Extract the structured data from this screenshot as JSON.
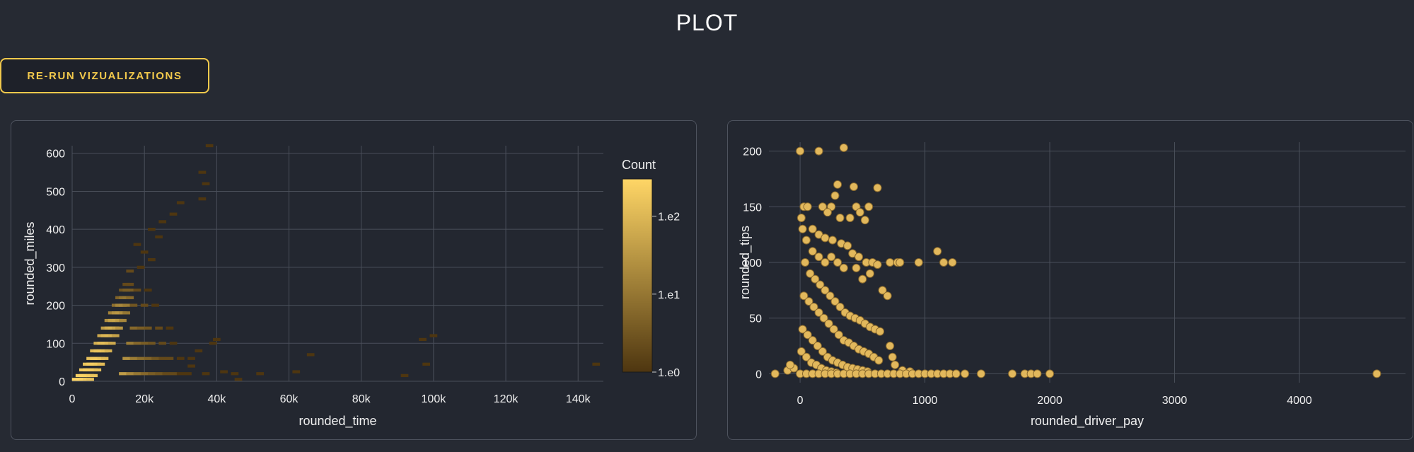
{
  "page": {
    "title": "PLOT"
  },
  "toolbar": {
    "rerun_label": "RE-RUN VIZUALIZATIONS"
  },
  "colors": {
    "background": "#262a33",
    "panel": "#232730",
    "accent": "#f2c94c",
    "point_fill": "#e2b85c",
    "point_stroke": "#8a6a2e",
    "heat_low": "#4e3610",
    "heat_high": "#ffd666",
    "grid": "#4a4f5a"
  },
  "chart_data": [
    {
      "type": "heatmap",
      "title": "",
      "xlabel": "rounded_time",
      "ylabel": "rounded_miles",
      "xlim": [
        0,
        147000
      ],
      "ylim": [
        0,
        620
      ],
      "x_ticks": [
        0,
        20000,
        40000,
        60000,
        80000,
        100000,
        120000,
        140000
      ],
      "x_tick_labels": [
        "0",
        "20k",
        "40k",
        "60k",
        "80k",
        "100k",
        "120k",
        "140k"
      ],
      "y_ticks": [
        0,
        100,
        200,
        300,
        400,
        500,
        600
      ],
      "y_tick_labels": [
        "0",
        "100",
        "200",
        "300",
        "400",
        "500",
        "600"
      ],
      "grid": true,
      "legend": {
        "title": "Count",
        "placement": "right",
        "scale": "log",
        "tick_labels": [
          "1.e0",
          "1.e1",
          "1.e2"
        ]
      },
      "bin_size": {
        "x": 1000,
        "y": 5
      },
      "cells": [
        [
          1000,
          5,
          300
        ],
        [
          2000,
          5,
          300
        ],
        [
          3000,
          5,
          260
        ],
        [
          4000,
          5,
          200
        ],
        [
          5000,
          5,
          150
        ],
        [
          2000,
          15,
          240
        ],
        [
          3000,
          15,
          260
        ],
        [
          4000,
          15,
          240
        ],
        [
          5000,
          15,
          200
        ],
        [
          6000,
          15,
          150
        ],
        [
          3000,
          30,
          200
        ],
        [
          4000,
          30,
          230
        ],
        [
          5000,
          30,
          220
        ],
        [
          6000,
          30,
          190
        ],
        [
          7000,
          30,
          140
        ],
        [
          4000,
          45,
          170
        ],
        [
          5000,
          45,
          200
        ],
        [
          6000,
          45,
          210
        ],
        [
          7000,
          45,
          180
        ],
        [
          8000,
          45,
          120
        ],
        [
          5000,
          60,
          140
        ],
        [
          6000,
          60,
          180
        ],
        [
          7000,
          60,
          190
        ],
        [
          8000,
          60,
          150
        ],
        [
          9000,
          60,
          100
        ],
        [
          6000,
          80,
          110
        ],
        [
          7000,
          80,
          150
        ],
        [
          8000,
          80,
          160
        ],
        [
          9000,
          80,
          130
        ],
        [
          10000,
          80,
          80
        ],
        [
          7000,
          100,
          80
        ],
        [
          8000,
          100,
          120
        ],
        [
          9000,
          100,
          130
        ],
        [
          10000,
          100,
          100
        ],
        [
          11000,
          100,
          60
        ],
        [
          8000,
          120,
          60
        ],
        [
          9000,
          120,
          90
        ],
        [
          10000,
          120,
          100
        ],
        [
          11000,
          120,
          80
        ],
        [
          12000,
          120,
          45
        ],
        [
          9000,
          140,
          40
        ],
        [
          10000,
          140,
          65
        ],
        [
          11000,
          140,
          75
        ],
        [
          12000,
          140,
          55
        ],
        [
          13000,
          140,
          30
        ],
        [
          10000,
          160,
          25
        ],
        [
          11000,
          160,
          45
        ],
        [
          12000,
          160,
          50
        ],
        [
          13000,
          160,
          35
        ],
        [
          14000,
          160,
          18
        ],
        [
          11000,
          180,
          15
        ],
        [
          12000,
          180,
          28
        ],
        [
          13000,
          180,
          32
        ],
        [
          14000,
          180,
          22
        ],
        [
          15000,
          180,
          10
        ],
        [
          12000,
          200,
          8
        ],
        [
          13000,
          200,
          16
        ],
        [
          14000,
          200,
          18
        ],
        [
          15000,
          200,
          12
        ],
        [
          13000,
          220,
          5
        ],
        [
          14000,
          220,
          8
        ],
        [
          15000,
          220,
          9
        ],
        [
          16000,
          220,
          6
        ],
        [
          14000,
          240,
          3
        ],
        [
          15000,
          240,
          4
        ],
        [
          16000,
          240,
          4
        ],
        [
          15000,
          255,
          2
        ],
        [
          16000,
          255,
          2
        ],
        [
          14000,
          20,
          40
        ],
        [
          16000,
          20,
          18
        ],
        [
          18000,
          20,
          10
        ],
        [
          20000,
          20,
          6
        ],
        [
          22000,
          20,
          4
        ],
        [
          24000,
          20,
          3
        ],
        [
          26000,
          20,
          2
        ],
        [
          28000,
          20,
          2
        ],
        [
          30000,
          20,
          1
        ],
        [
          32000,
          20,
          1
        ],
        [
          15000,
          60,
          25
        ],
        [
          17000,
          60,
          12
        ],
        [
          19000,
          60,
          7
        ],
        [
          21000,
          60,
          5
        ],
        [
          23000,
          60,
          3
        ],
        [
          25000,
          60,
          2
        ],
        [
          27000,
          60,
          2
        ],
        [
          30000,
          60,
          1
        ],
        [
          33000,
          60,
          1
        ],
        [
          16000,
          100,
          12
        ],
        [
          18000,
          100,
          6
        ],
        [
          20000,
          100,
          4
        ],
        [
          22000,
          100,
          3
        ],
        [
          25000,
          100,
          2
        ],
        [
          28000,
          100,
          1
        ],
        [
          17000,
          140,
          6
        ],
        [
          19000,
          140,
          4
        ],
        [
          21000,
          140,
          3
        ],
        [
          24000,
          140,
          2
        ],
        [
          27000,
          140,
          1
        ],
        [
          17000,
          200,
          3
        ],
        [
          20000,
          200,
          2
        ],
        [
          23000,
          200,
          1
        ],
        [
          18000,
          240,
          2
        ],
        [
          21000,
          240,
          1
        ],
        [
          16000,
          290,
          2
        ],
        [
          19000,
          300,
          1
        ],
        [
          22000,
          320,
          1
        ],
        [
          20000,
          340,
          1
        ],
        [
          18000,
          360,
          1
        ],
        [
          24000,
          380,
          1
        ],
        [
          22000,
          400,
          1
        ],
        [
          25000,
          420,
          1
        ],
        [
          28000,
          440,
          1
        ],
        [
          30000,
          470,
          1
        ],
        [
          36000,
          480,
          1
        ],
        [
          37000,
          520,
          1
        ],
        [
          36000,
          550,
          1
        ],
        [
          38000,
          620,
          1
        ],
        [
          33000,
          40,
          1
        ],
        [
          35000,
          80,
          1
        ],
        [
          39000,
          100,
          1
        ],
        [
          40000,
          110,
          1
        ],
        [
          37000,
          20,
          1
        ],
        [
          42000,
          25,
          1
        ],
        [
          45000,
          20,
          1
        ],
        [
          46000,
          5,
          1
        ],
        [
          52000,
          20,
          1
        ],
        [
          66000,
          70,
          1
        ],
        [
          62000,
          25,
          1
        ],
        [
          97000,
          110,
          1
        ],
        [
          100000,
          120,
          1
        ],
        [
          98000,
          45,
          1
        ],
        [
          92000,
          15,
          1
        ],
        [
          145000,
          45,
          1
        ]
      ]
    },
    {
      "type": "scatter",
      "title": "",
      "xlabel": "rounded_driver_pay",
      "ylabel": "rounded_tips",
      "xlim": [
        -250,
        4850
      ],
      "ylim": [
        -8,
        208
      ],
      "x_ticks": [
        0,
        1000,
        2000,
        3000,
        4000
      ],
      "x_tick_labels": [
        "0",
        "1000",
        "2000",
        "3000",
        "4000"
      ],
      "y_ticks": [
        0,
        50,
        100,
        150,
        200
      ],
      "y_tick_labels": [
        "0",
        "50",
        "100",
        "150",
        "200"
      ],
      "grid": true,
      "points": [
        [
          -200,
          0
        ],
        [
          0,
          200
        ],
        [
          150,
          200
        ],
        [
          350,
          203
        ],
        [
          550,
          150
        ],
        [
          450,
          150
        ],
        [
          620,
          167
        ],
        [
          300,
          170
        ],
        [
          430,
          168
        ],
        [
          280,
          160
        ],
        [
          250,
          150
        ],
        [
          30,
          150
        ],
        [
          60,
          150
        ],
        [
          180,
          150
        ],
        [
          220,
          145
        ],
        [
          320,
          140
        ],
        [
          480,
          145
        ],
        [
          400,
          140
        ],
        [
          520,
          138
        ],
        [
          100,
          130
        ],
        [
          150,
          125
        ],
        [
          200,
          122
        ],
        [
          260,
          120
        ],
        [
          330,
          117
        ],
        [
          380,
          115
        ],
        [
          420,
          108
        ],
        [
          470,
          105
        ],
        [
          530,
          100
        ],
        [
          580,
          100
        ],
        [
          620,
          98
        ],
        [
          660,
          75
        ],
        [
          700,
          70
        ],
        [
          560,
          90
        ],
        [
          500,
          85
        ],
        [
          450,
          95
        ],
        [
          350,
          95
        ],
        [
          300,
          100
        ],
        [
          250,
          105
        ],
        [
          200,
          100
        ],
        [
          150,
          105
        ],
        [
          100,
          110
        ],
        [
          50,
          120
        ],
        [
          20,
          130
        ],
        [
          10,
          140
        ],
        [
          40,
          100
        ],
        [
          80,
          90
        ],
        [
          120,
          85
        ],
        [
          160,
          80
        ],
        [
          200,
          75
        ],
        [
          240,
          70
        ],
        [
          280,
          65
        ],
        [
          320,
          60
        ],
        [
          360,
          55
        ],
        [
          400,
          52
        ],
        [
          440,
          50
        ],
        [
          480,
          48
        ],
        [
          520,
          45
        ],
        [
          560,
          42
        ],
        [
          600,
          40
        ],
        [
          640,
          38
        ],
        [
          30,
          70
        ],
        [
          70,
          65
        ],
        [
          110,
          60
        ],
        [
          150,
          55
        ],
        [
          190,
          50
        ],
        [
          230,
          45
        ],
        [
          270,
          40
        ],
        [
          310,
          35
        ],
        [
          350,
          30
        ],
        [
          390,
          28
        ],
        [
          430,
          25
        ],
        [
          470,
          22
        ],
        [
          510,
          20
        ],
        [
          550,
          18
        ],
        [
          590,
          15
        ],
        [
          630,
          12
        ],
        [
          20,
          40
        ],
        [
          60,
          35
        ],
        [
          100,
          30
        ],
        [
          140,
          25
        ],
        [
          180,
          20
        ],
        [
          220,
          15
        ],
        [
          260,
          12
        ],
        [
          300,
          10
        ],
        [
          340,
          8
        ],
        [
          380,
          6
        ],
        [
          420,
          5
        ],
        [
          460,
          4
        ],
        [
          500,
          3
        ],
        [
          540,
          2
        ],
        [
          10,
          20
        ],
        [
          50,
          15
        ],
        [
          90,
          10
        ],
        [
          130,
          8
        ],
        [
          170,
          5
        ],
        [
          210,
          3
        ],
        [
          250,
          2
        ],
        [
          290,
          1
        ],
        [
          720,
          100
        ],
        [
          780,
          100
        ],
        [
          800,
          100
        ],
        [
          950,
          100
        ],
        [
          1100,
          110
        ],
        [
          1150,
          100
        ],
        [
          1220,
          100
        ],
        [
          720,
          25
        ],
        [
          740,
          15
        ],
        [
          760,
          8
        ],
        [
          820,
          3
        ],
        [
          880,
          2
        ],
        [
          0,
          0
        ],
        [
          50,
          0
        ],
        [
          100,
          0
        ],
        [
          150,
          0
        ],
        [
          200,
          0
        ],
        [
          250,
          0
        ],
        [
          300,
          0
        ],
        [
          350,
          0
        ],
        [
          400,
          0
        ],
        [
          450,
          0
        ],
        [
          500,
          0
        ],
        [
          550,
          0
        ],
        [
          600,
          0
        ],
        [
          650,
          0
        ],
        [
          700,
          0
        ],
        [
          750,
          0
        ],
        [
          800,
          0
        ],
        [
          850,
          0
        ],
        [
          900,
          0
        ],
        [
          950,
          0
        ],
        [
          1000,
          0
        ],
        [
          1050,
          0
        ],
        [
          1100,
          0
        ],
        [
          1150,
          0
        ],
        [
          1200,
          0
        ],
        [
          1250,
          0
        ],
        [
          1320,
          0
        ],
        [
          1450,
          0
        ],
        [
          1700,
          0
        ],
        [
          1800,
          0
        ],
        [
          1850,
          0
        ],
        [
          1900,
          0
        ],
        [
          2000,
          0
        ],
        [
          4620,
          0
        ],
        [
          -100,
          3
        ],
        [
          -50,
          5
        ],
        [
          -80,
          8
        ]
      ]
    }
  ]
}
